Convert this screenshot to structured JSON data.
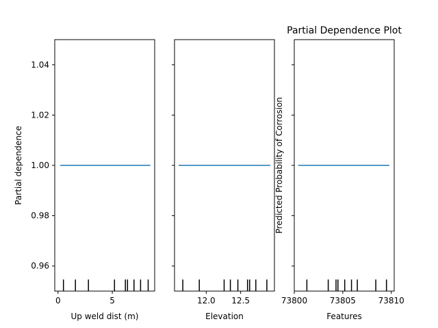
{
  "title": "Partial Dependence Plot",
  "colors": {
    "line": "#1f77b4",
    "axes": "#000000",
    "background": "#ffffff"
  },
  "shared_y": {
    "label": "Partial dependence",
    "ylim": [
      0.95,
      1.05
    ],
    "ticks": [
      0.96,
      0.98,
      1.0,
      1.02,
      1.04
    ],
    "tick_labels": [
      "0.96",
      "0.98",
      "1.00",
      "1.02",
      "1.04"
    ]
  },
  "overlay_label": "Predicted Probability of Corrosion",
  "chart_data": [
    {
      "type": "line",
      "xlabel": "Up weld dist (m)",
      "ylabel": "Partial dependence",
      "xlim": [
        -0.3,
        8.9
      ],
      "ylim": [
        0.95,
        1.05
      ],
      "xticks": [
        0,
        5
      ],
      "xtick_labels": [
        "0",
        "5"
      ],
      "series": [
        {
          "x": [
            0.2,
            8.5
          ],
          "y": [
            1.0,
            1.0
          ]
        }
      ],
      "deciles": [
        0.5,
        1.6,
        2.8,
        5.2,
        6.2,
        6.4,
        7.0,
        7.6,
        8.3
      ]
    },
    {
      "type": "line",
      "xlabel": "Elevation",
      "ylabel": "",
      "xlim": [
        11.54,
        12.99
      ],
      "ylim": [
        0.95,
        1.05
      ],
      "xticks": [
        12.0,
        12.5
      ],
      "xtick_labels": [
        "12.0",
        "12.5"
      ],
      "series": [
        {
          "x": [
            11.6,
            12.93
          ],
          "y": [
            1.0,
            1.0
          ]
        }
      ],
      "deciles": [
        11.66,
        11.9,
        12.26,
        12.35,
        12.46,
        12.6,
        12.63,
        12.72,
        12.88
      ]
    },
    {
      "type": "line",
      "xlabel": "Features",
      "ylabel": "",
      "xlim": [
        73800.0,
        73810.3
      ],
      "ylim": [
        0.95,
        1.05
      ],
      "xticks": [
        73800,
        73805,
        73810
      ],
      "xtick_labels": [
        "73800",
        "73805",
        "73810"
      ],
      "series": [
        {
          "x": [
            73800.4,
            73809.8
          ],
          "y": [
            1.0,
            1.0
          ]
        }
      ],
      "deciles": [
        73801.3,
        73803.5,
        73804.3,
        73804.5,
        73805.2,
        73805.9,
        73806.5,
        73808.4,
        73809.5
      ]
    }
  ]
}
